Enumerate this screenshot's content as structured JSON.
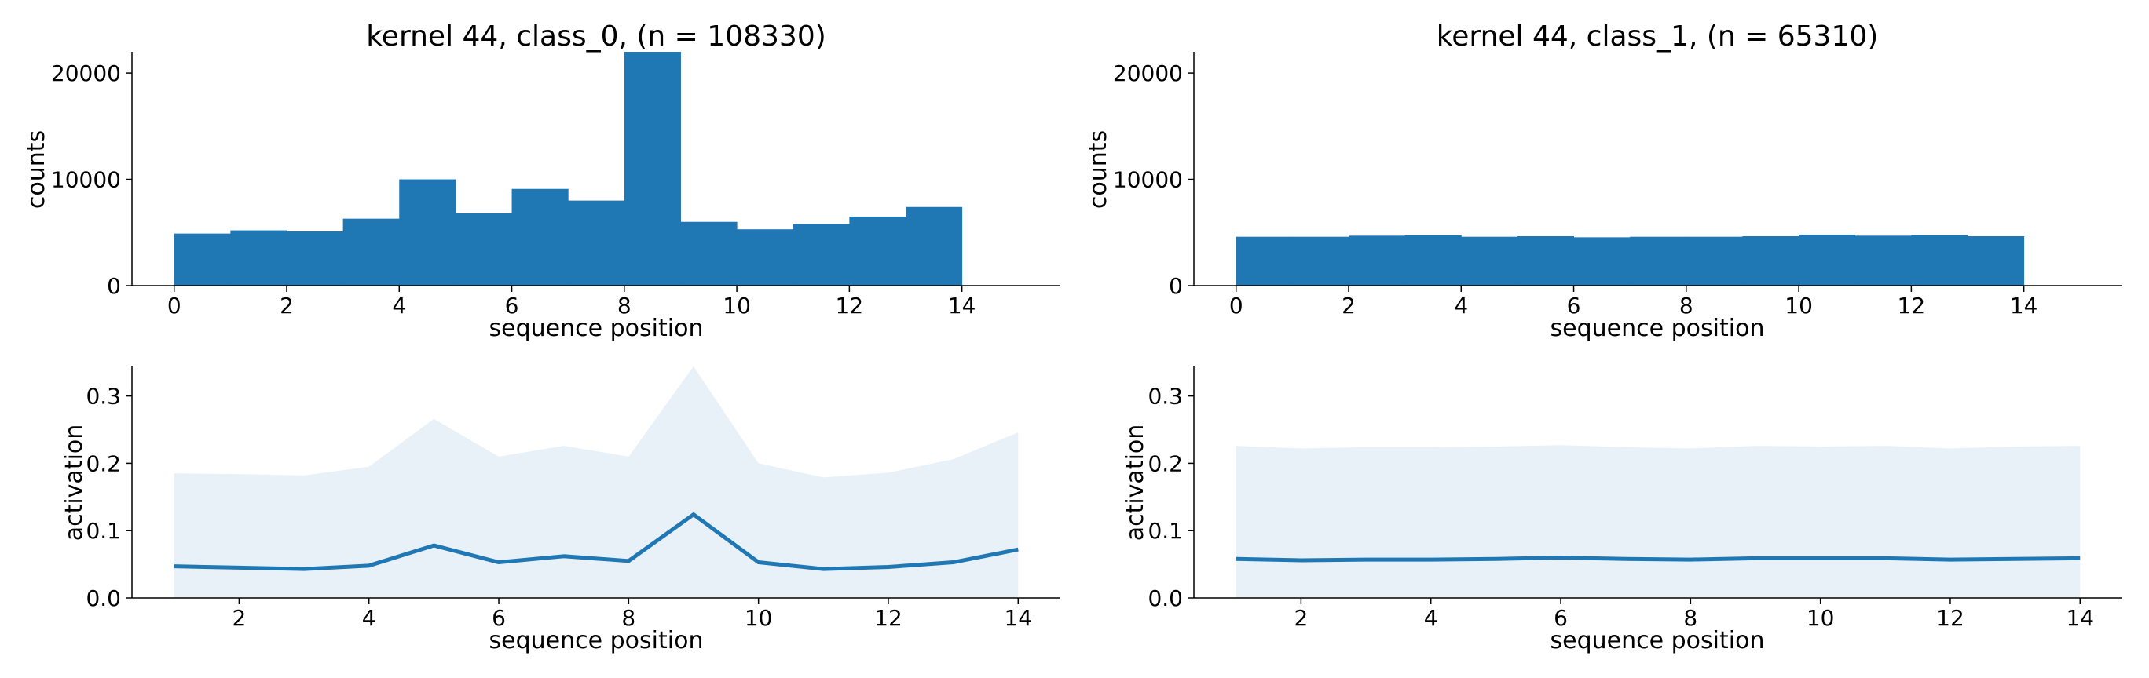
{
  "colors": {
    "bar": "#1f77b4",
    "line": "#1f77b4",
    "band": "#e8f0f8",
    "axis": "#000000"
  },
  "chart_data": [
    {
      "id": "hist_class0",
      "type": "bar",
      "title": "kernel 44, class_0, (n = 108330)",
      "xlabel": "sequence position",
      "ylabel": "counts",
      "xlim": [
        -0.75,
        15.75
      ],
      "ylim": [
        0,
        22000
      ],
      "xticks": [
        0,
        2,
        4,
        6,
        8,
        10,
        12,
        14
      ],
      "yticks": [
        0,
        10000,
        20000
      ],
      "bin_edges": [
        0,
        1,
        2,
        3,
        4,
        5,
        6,
        7,
        8,
        9,
        10,
        11,
        12,
        13,
        14
      ],
      "values": [
        4900,
        5200,
        5100,
        6300,
        10000,
        6800,
        9100,
        8000,
        22100,
        6000,
        5300,
        5800,
        6500,
        7400
      ]
    },
    {
      "id": "hist_class1",
      "type": "bar",
      "title": "kernel 44, class_1, (n = 65310)",
      "xlabel": "sequence position",
      "ylabel": "counts",
      "xlim": [
        -0.75,
        15.75
      ],
      "ylim": [
        0,
        22000
      ],
      "xticks": [
        0,
        2,
        4,
        6,
        8,
        10,
        12,
        14
      ],
      "yticks": [
        0,
        10000,
        20000
      ],
      "bin_edges": [
        0,
        1,
        2,
        3,
        4,
        5,
        6,
        7,
        8,
        9,
        10,
        11,
        12,
        13,
        14
      ],
      "values": [
        4600,
        4600,
        4700,
        4750,
        4600,
        4650,
        4550,
        4600,
        4600,
        4650,
        4800,
        4700,
        4750,
        4650
      ]
    },
    {
      "id": "act_class0",
      "type": "line",
      "title": "",
      "xlabel": "sequence position",
      "ylabel": "activation",
      "xlim": [
        0.35,
        14.65
      ],
      "ylim": [
        0,
        0.345
      ],
      "xticks": [
        2,
        4,
        6,
        8,
        10,
        12,
        14
      ],
      "yticks": [
        0.0,
        0.1,
        0.2,
        0.3
      ],
      "x": [
        1,
        2,
        3,
        4,
        5,
        6,
        7,
        8,
        9,
        10,
        11,
        12,
        13,
        14
      ],
      "series": [
        {
          "values": [
            0.047,
            0.045,
            0.043,
            0.048,
            0.078,
            0.053,
            0.062,
            0.055,
            0.124,
            0.053,
            0.043,
            0.046,
            0.053,
            0.072
          ]
        }
      ],
      "band_upper": [
        0.185,
        0.184,
        0.182,
        0.195,
        0.266,
        0.21,
        0.226,
        0.21,
        0.344,
        0.2,
        0.179,
        0.186,
        0.206,
        0.246
      ]
    },
    {
      "id": "act_class1",
      "type": "line",
      "title": "",
      "xlabel": "sequence position",
      "ylabel": "activation",
      "xlim": [
        0.35,
        14.65
      ],
      "ylim": [
        0,
        0.345
      ],
      "xticks": [
        2,
        4,
        6,
        8,
        10,
        12,
        14
      ],
      "yticks": [
        0.0,
        0.1,
        0.2,
        0.3
      ],
      "x": [
        1,
        2,
        3,
        4,
        5,
        6,
        7,
        8,
        9,
        10,
        11,
        12,
        13,
        14
      ],
      "series": [
        {
          "values": [
            0.058,
            0.056,
            0.057,
            0.057,
            0.058,
            0.06,
            0.058,
            0.057,
            0.059,
            0.059,
            0.059,
            0.057,
            0.058,
            0.059
          ]
        }
      ],
      "band_upper": [
        0.226,
        0.222,
        0.224,
        0.224,
        0.225,
        0.227,
        0.224,
        0.222,
        0.226,
        0.225,
        0.226,
        0.222,
        0.225,
        0.226
      ]
    }
  ]
}
